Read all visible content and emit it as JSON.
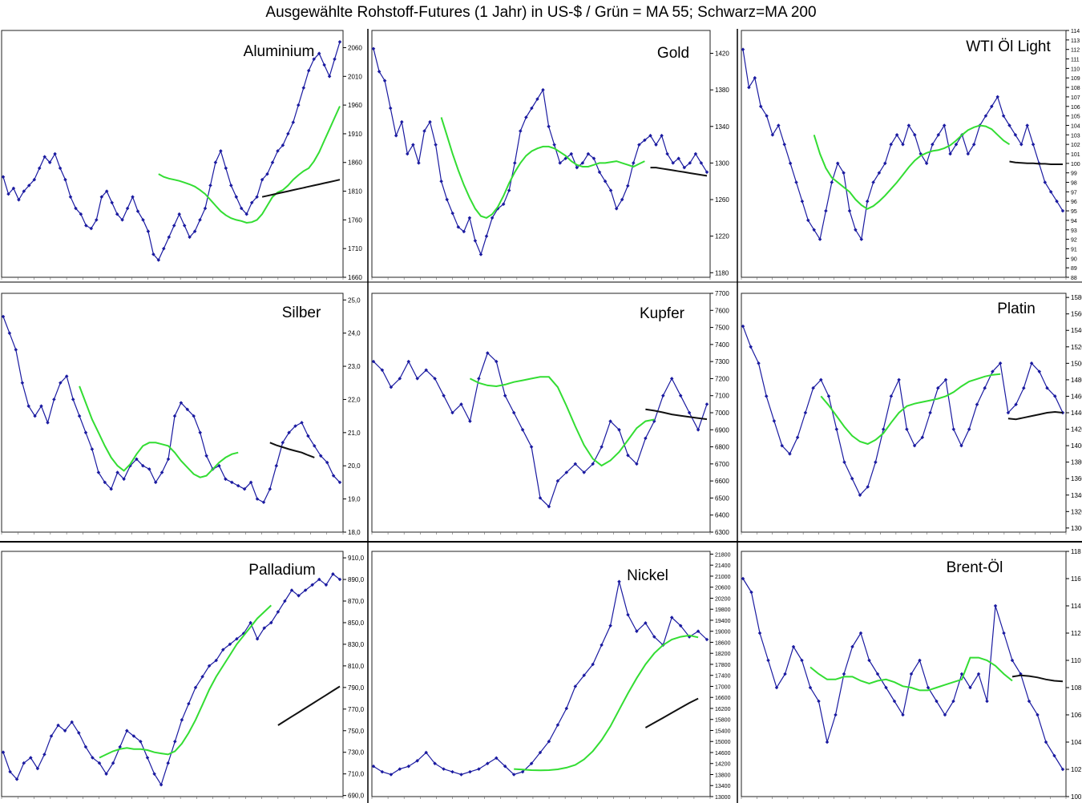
{
  "title": "Ausgewählte Rohstoff-Futures (1 Jahr) in US-$ / Grün = MA 55; Schwarz=MA 200",
  "colors": {
    "price": "#1a1aa0",
    "ma55": "#33dd33",
    "ma200": "#111111",
    "panel_border": "#222222"
  },
  "chart_data": [
    {
      "type": "line",
      "title": "Aluminium",
      "ylim": [
        1660,
        2090
      ],
      "yticks": [
        1660,
        1710,
        1760,
        1810,
        1860,
        1910,
        1960,
        2010,
        2060
      ],
      "tick_decimals": 0,
      "series": [
        {
          "values": [
            1835,
            1805,
            1815,
            1795,
            1810,
            1820,
            1830,
            1850,
            1870,
            1860,
            1875,
            1850,
            1830,
            1800,
            1780,
            1770,
            1750,
            1745,
            1760,
            1800,
            1810,
            1790,
            1770,
            1760,
            1780,
            1800,
            1775,
            1760,
            1740,
            1700,
            1690,
            1710,
            1730,
            1750,
            1770,
            1750,
            1730,
            1740,
            1760,
            1780,
            1820,
            1860,
            1880,
            1850,
            1820,
            1800,
            1780,
            1770,
            1790,
            1800,
            1830,
            1840,
            1860,
            1880,
            1890,
            1910,
            1930,
            1960,
            1990,
            2020,
            2040,
            2050,
            2030,
            2010,
            2040,
            2070
          ]
        },
        {
          "values": [
            1840,
            1835,
            1832,
            1830,
            1828,
            1825,
            1822,
            1818,
            1812,
            1805,
            1795,
            1785,
            1775,
            1768,
            1763,
            1760,
            1758,
            1755,
            1756,
            1760,
            1770,
            1785,
            1800,
            1808,
            1812,
            1820,
            1830,
            1838,
            1845,
            1850,
            1862,
            1878,
            1898,
            1918,
            1938,
            1958
          ],
          "start_index": 30
        },
        {
          "values": [
            1800,
            1802,
            1804,
            1806,
            1808,
            1810,
            1812,
            1814,
            1816,
            1818,
            1820,
            1822,
            1824,
            1826,
            1828,
            1830
          ],
          "start_index": 50
        }
      ]
    },
    {
      "type": "line",
      "title": "Gold",
      "ylim": [
        1175,
        1445
      ],
      "yticks": [
        1180,
        1220,
        1260,
        1300,
        1340,
        1380,
        1420
      ],
      "tick_decimals": 0,
      "series": [
        {
          "values": [
            1425,
            1400,
            1390,
            1360,
            1330,
            1345,
            1310,
            1320,
            1300,
            1335,
            1345,
            1320,
            1280,
            1260,
            1245,
            1230,
            1225,
            1240,
            1215,
            1200,
            1220,
            1240,
            1250,
            1255,
            1270,
            1300,
            1335,
            1350,
            1360,
            1370,
            1380,
            1340,
            1320,
            1300,
            1305,
            1310,
            1295,
            1300,
            1310,
            1305,
            1290,
            1280,
            1270,
            1250,
            1260,
            1275,
            1300,
            1320,
            1325,
            1330,
            1320,
            1330,
            1310,
            1300,
            1305,
            1295,
            1300,
            1310,
            1300,
            1290
          ]
        },
        {
          "values": [
            1350,
            1330,
            1310,
            1292,
            1276,
            1262,
            1250,
            1242,
            1240,
            1244,
            1252,
            1264,
            1278,
            1290,
            1300,
            1308,
            1313,
            1316,
            1318,
            1318,
            1316,
            1312,
            1308,
            1302,
            1298,
            1296,
            1296,
            1298,
            1300,
            1300,
            1301,
            1302,
            1300,
            1298,
            1296,
            1299,
            1302
          ],
          "start_index": 12
        },
        {
          "values": [
            1295,
            1295,
            1294,
            1293,
            1292,
            1291,
            1290,
            1289,
            1288,
            1287,
            1286
          ],
          "start_index": 49
        }
      ]
    },
    {
      "type": "line",
      "title": "WTI Öl Light",
      "ylim": [
        88,
        114
      ],
      "yticks": [
        88,
        89,
        90,
        91,
        92,
        93,
        94,
        95,
        96,
        97,
        98,
        99,
        100,
        101,
        102,
        103,
        104,
        105,
        106,
        107,
        108,
        109,
        110,
        111,
        112,
        113,
        114
      ],
      "tick_decimals": 0,
      "series": [
        {
          "values": [
            112,
            108,
            109,
            106,
            105,
            103,
            104,
            102,
            100,
            98,
            96,
            94,
            93,
            92,
            95,
            98,
            100,
            99,
            95,
            93,
            92,
            96,
            98,
            99,
            100,
            102,
            103,
            102,
            104,
            103,
            101,
            100,
            102,
            103,
            104,
            101,
            102,
            103,
            101,
            102,
            104,
            105,
            106,
            107,
            105,
            104,
            103,
            102,
            104,
            102,
            100,
            98,
            97,
            96,
            95
          ]
        },
        {
          "values": [
            103,
            101,
            99.5,
            98.5,
            98,
            97.5,
            97,
            96.2,
            95.6,
            95.2,
            95.5,
            96,
            96.6,
            97.3,
            98,
            98.8,
            99.6,
            100.3,
            100.8,
            101.1,
            101.3,
            101.4,
            101.6,
            101.9,
            102.4,
            103,
            103.5,
            103.8,
            104,
            103.9,
            103.6,
            103,
            102.4,
            102
          ],
          "start_index": 12
        },
        {
          "values": [
            100.2,
            100.1,
            100.05,
            100,
            100,
            99.95,
            99.95,
            99.9,
            99.9,
            99.9
          ],
          "start_index": 45
        }
      ]
    },
    {
      "type": "line",
      "title": "Silber",
      "ylim": [
        18,
        25.2
      ],
      "yticks": [
        18,
        19,
        20,
        21,
        22,
        23,
        24,
        25
      ],
      "tick_decimals": 1,
      "series": [
        {
          "values": [
            24.5,
            24.0,
            23.5,
            22.5,
            21.8,
            21.5,
            21.8,
            21.3,
            22.0,
            22.5,
            22.7,
            22.0,
            21.5,
            21.0,
            20.5,
            19.8,
            19.5,
            19.3,
            19.8,
            19.6,
            20.0,
            20.2,
            20.0,
            19.9,
            19.5,
            19.8,
            20.2,
            21.5,
            21.9,
            21.7,
            21.5,
            21.0,
            20.3,
            19.9,
            20.0,
            19.6,
            19.5,
            19.4,
            19.3,
            19.5,
            19.0,
            18.9,
            19.3,
            20.0,
            20.7,
            21.0,
            21.2,
            21.3,
            20.9,
            20.6,
            20.3,
            20.1,
            19.7,
            19.5
          ]
        },
        {
          "values": [
            22.4,
            21.9,
            21.4,
            21.0,
            20.6,
            20.25,
            20.0,
            19.85,
            20.05,
            20.35,
            20.6,
            20.7,
            20.7,
            20.65,
            20.6,
            20.4,
            20.15,
            19.95,
            19.75,
            19.65,
            19.7,
            19.9,
            20.1,
            20.25,
            20.35,
            20.4
          ],
          "start_index": 12
        },
        {
          "values": [
            20.7,
            20.62,
            20.56,
            20.5,
            20.45,
            20.4,
            20.32,
            20.25
          ],
          "start_index": 42
        }
      ]
    },
    {
      "type": "line",
      "title": "Kupfer",
      "ylim": [
        6300,
        7700
      ],
      "yticks": [
        6300,
        6400,
        6500,
        6600,
        6700,
        6800,
        6900,
        7000,
        7100,
        7200,
        7300,
        7400,
        7500,
        7600,
        7700
      ],
      "tick_decimals": 0,
      "series": [
        {
          "values": [
            7300,
            7250,
            7150,
            7200,
            7300,
            7200,
            7250,
            7200,
            7100,
            7000,
            7050,
            6950,
            7200,
            7350,
            7300,
            7100,
            7000,
            6900,
            6800,
            6500,
            6450,
            6600,
            6650,
            6700,
            6650,
            6700,
            6800,
            6950,
            6900,
            6750,
            6700,
            6850,
            6950,
            7100,
            7200,
            7100,
            7000,
            6900,
            7050
          ]
        },
        {
          "values": [
            7200,
            7175,
            7160,
            7155,
            7165,
            7180,
            7190,
            7200,
            7210,
            7210,
            7150,
            7040,
            6920,
            6810,
            6730,
            6690,
            6720,
            6770,
            6840,
            6910,
            6950,
            6960
          ],
          "start_index": 11
        },
        {
          "values": [
            7020,
            7012,
            7002,
            6990,
            6982,
            6975,
            6968,
            6962
          ],
          "start_index": 31
        }
      ]
    },
    {
      "type": "line",
      "title": "Platin",
      "ylim": [
        1295,
        1585
      ],
      "yticks": [
        1300,
        1320,
        1340,
        1360,
        1380,
        1400,
        1420,
        1440,
        1460,
        1480,
        1500,
        1520,
        1540,
        1560,
        1580
      ],
      "tick_decimals": 0,
      "series": [
        {
          "values": [
            1545,
            1520,
            1500,
            1460,
            1430,
            1400,
            1390,
            1410,
            1440,
            1470,
            1480,
            1460,
            1420,
            1380,
            1360,
            1340,
            1350,
            1380,
            1420,
            1460,
            1480,
            1420,
            1400,
            1410,
            1440,
            1470,
            1480,
            1420,
            1400,
            1420,
            1450,
            1470,
            1490,
            1500,
            1440,
            1450,
            1470,
            1500,
            1490,
            1470,
            1460,
            1440
          ]
        },
        {
          "values": [
            1460,
            1449,
            1436,
            1423,
            1412,
            1405,
            1402,
            1407,
            1415,
            1428,
            1440,
            1448,
            1451,
            1453,
            1455,
            1457,
            1460,
            1465,
            1472,
            1478,
            1481,
            1484,
            1486,
            1487
          ],
          "start_index": 10
        },
        {
          "values": [
            1433,
            1432,
            1434,
            1436,
            1438,
            1440,
            1441,
            1440
          ],
          "start_index": 34
        }
      ]
    },
    {
      "type": "line",
      "title": "Palladium",
      "ylim": [
        689,
        916
      ],
      "yticks": [
        690,
        710,
        730,
        750,
        770,
        790,
        810,
        830,
        850,
        870,
        890,
        910
      ],
      "tick_decimals": 1,
      "series": [
        {
          "values": [
            730,
            712,
            705,
            720,
            725,
            715,
            728,
            745,
            755,
            750,
            758,
            748,
            735,
            725,
            720,
            710,
            720,
            735,
            750,
            745,
            740,
            725,
            710,
            700,
            720,
            740,
            760,
            775,
            790,
            800,
            810,
            815,
            825,
            830,
            835,
            840,
            850,
            835,
            845,
            850,
            860,
            870,
            880,
            875,
            880,
            885,
            890,
            885,
            895,
            890
          ]
        },
        {
          "values": [
            725,
            728,
            731,
            733,
            734,
            733,
            733,
            732,
            730,
            729,
            728,
            731,
            738,
            748,
            760,
            774,
            788,
            800,
            810,
            820,
            830,
            838,
            846,
            854,
            860,
            866
          ],
          "start_index": 14
        },
        {
          "values": [
            755,
            759,
            763,
            767,
            771,
            775,
            779,
            783,
            787,
            791
          ],
          "start_index": 40
        }
      ]
    },
    {
      "type": "line",
      "title": "Nickel",
      "ylim": [
        13000,
        21900
      ],
      "yticks": [
        13000,
        13400,
        13800,
        14200,
        14600,
        15000,
        15400,
        15800,
        16200,
        16600,
        17000,
        17400,
        17800,
        18200,
        18600,
        19000,
        19400,
        19800,
        20200,
        20600,
        21000,
        21400,
        21800
      ],
      "tick_decimals": 0,
      "series": [
        {
          "values": [
            14100,
            13900,
            13800,
            14000,
            14100,
            14300,
            14600,
            14200,
            14000,
            13900,
            13800,
            13900,
            14000,
            14200,
            14400,
            14100,
            13800,
            13900,
            14200,
            14600,
            15000,
            15600,
            16200,
            17000,
            17400,
            17800,
            18500,
            19200,
            20800,
            19600,
            19000,
            19300,
            18800,
            18500,
            19500,
            19200,
            18800,
            19000,
            18700
          ]
        },
        {
          "values": [
            14000,
            13980,
            13960,
            13950,
            13960,
            13990,
            14050,
            14150,
            14350,
            14650,
            15050,
            15550,
            16150,
            16750,
            17300,
            17800,
            18200,
            18500,
            18700,
            18800,
            18850,
            18780
          ],
          "start_index": 16
        },
        {
          "values": [
            15500,
            15680,
            15860,
            16040,
            16220,
            16400,
            16560
          ],
          "start_index": 31
        }
      ]
    },
    {
      "type": "line",
      "title": "Brent-Öl",
      "ylim": [
        100,
        118
      ],
      "yticks": [
        100,
        102,
        104,
        106,
        108,
        110,
        112,
        114,
        116,
        118
      ],
      "tick_decimals": 0,
      "series": [
        {
          "values": [
            116,
            115,
            112,
            110,
            108,
            109,
            111,
            110,
            108,
            107,
            104,
            106,
            109,
            111,
            112,
            110,
            109,
            108,
            107,
            106,
            109,
            110,
            108,
            107,
            106,
            107,
            109,
            108,
            109,
            107,
            114,
            112,
            110,
            109,
            107,
            106,
            104,
            103,
            102
          ]
        },
        {
          "values": [
            109.5,
            109,
            108.6,
            108.6,
            108.8,
            108.8,
            108.5,
            108.3,
            108.5,
            108.6,
            108.4,
            108.1,
            108,
            107.8,
            107.8,
            108,
            108.2,
            108.4,
            108.6,
            110.2,
            110.2,
            110,
            109.6,
            109,
            108.5
          ],
          "start_index": 8
        },
        {
          "values": [
            108.8,
            108.9,
            108.85,
            108.75,
            108.6,
            108.5,
            108.45
          ],
          "start_index": 32
        }
      ]
    }
  ]
}
